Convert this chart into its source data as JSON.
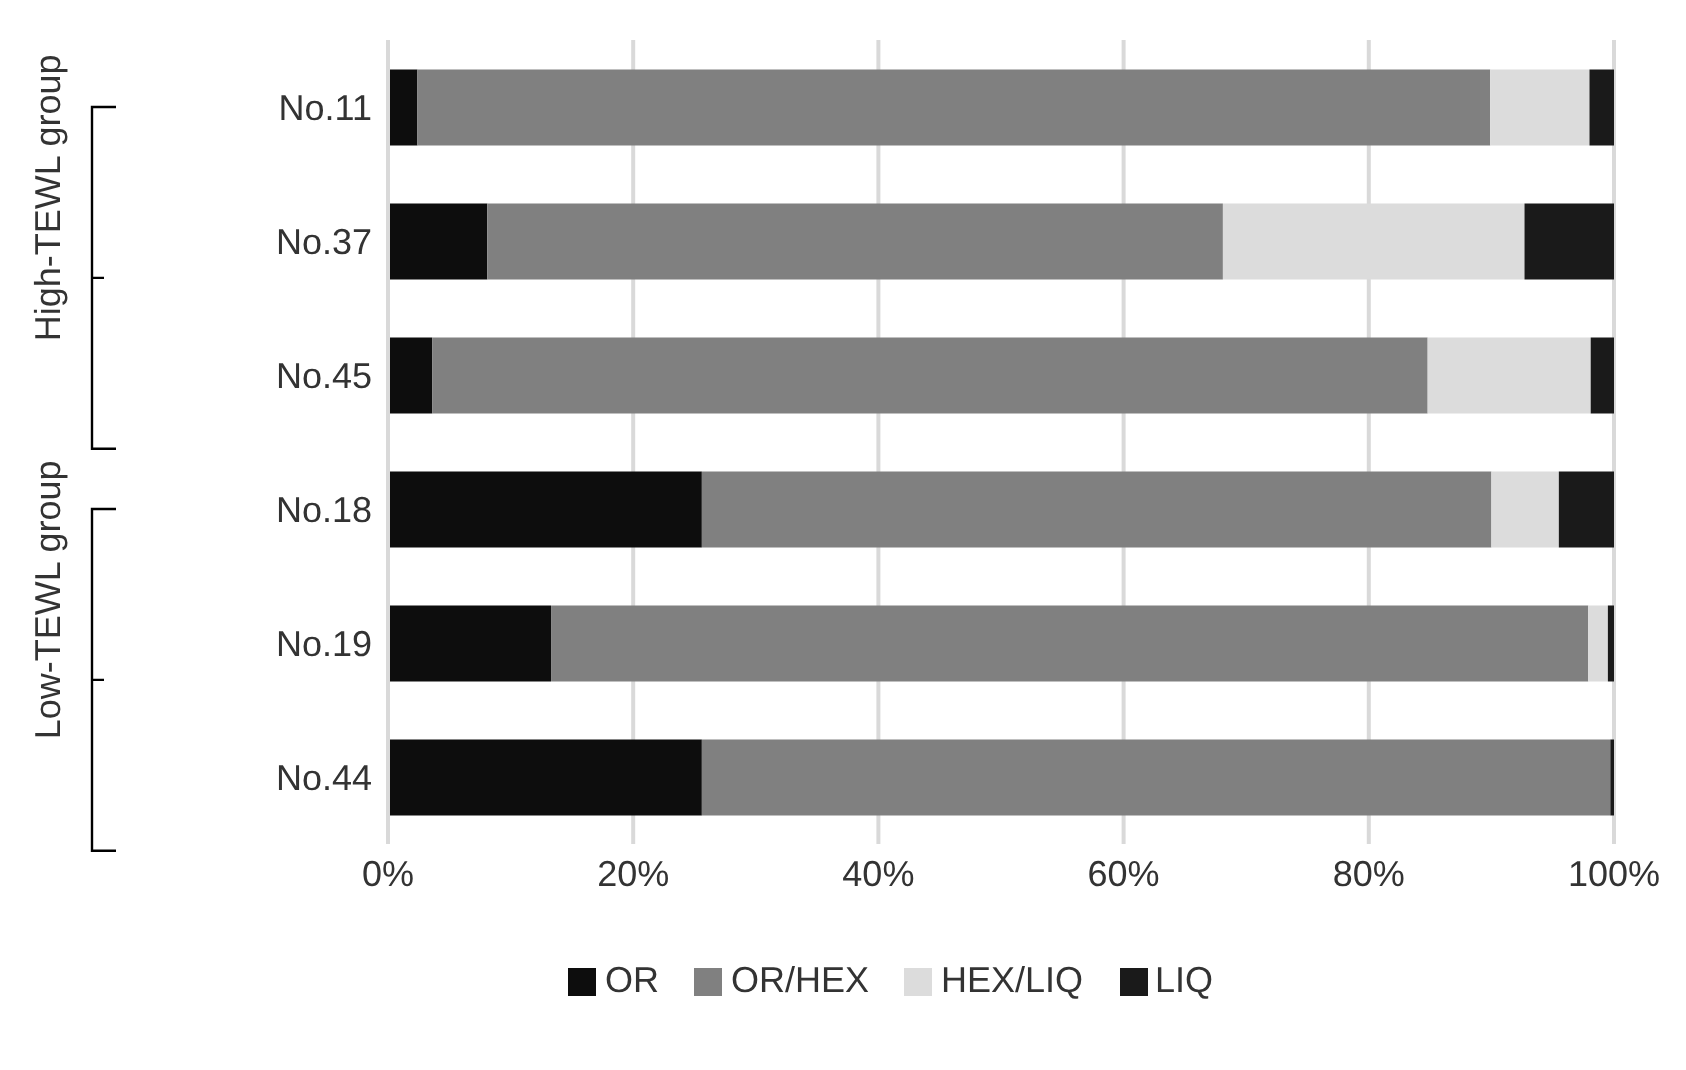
{
  "chart_data": {
    "type": "bar",
    "orientation": "horizontal",
    "stacked": true,
    "categories": [
      "No.11",
      "No.37",
      "No.45",
      "No.18",
      "No.19",
      "No.44"
    ],
    "series": [
      {
        "name": "OR",
        "color": "#0d0d0d",
        "values": [
          2.4,
          8.1,
          3.6,
          25.6,
          13.3,
          25.6
        ]
      },
      {
        "name": "OR/HEX",
        "color": "#808080",
        "values": [
          87.5,
          60.0,
          81.2,
          64.4,
          84.6,
          74.1
        ]
      },
      {
        "name": "HEX/LIQ",
        "color": "#dcdcdc",
        "values": [
          8.1,
          24.6,
          13.3,
          5.5,
          1.6,
          0
        ]
      },
      {
        "name": "LIQ",
        "color": "#1a1a1a",
        "values": [
          2.0,
          7.3,
          1.9,
          4.5,
          0.5,
          0.3
        ]
      }
    ],
    "xlim": [
      0,
      100
    ],
    "xticks": [
      {
        "value": 0,
        "label": "0%"
      },
      {
        "value": 20,
        "label": "20%"
      },
      {
        "value": 40,
        "label": "40%"
      },
      {
        "value": 60,
        "label": "60%"
      },
      {
        "value": 80,
        "label": "80%"
      },
      {
        "value": 100,
        "label": "100%"
      }
    ],
    "grid": "x",
    "legend": "bottom",
    "annotations": [
      "High-TEWL group",
      "Low-TEWL group"
    ]
  }
}
